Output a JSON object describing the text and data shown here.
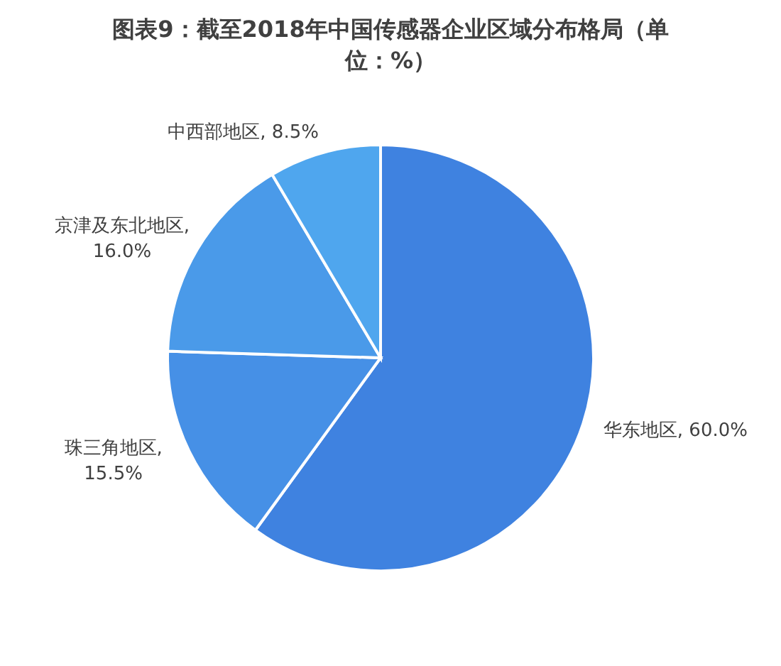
{
  "chart_data": {
    "type": "pie",
    "title": "图表9：截至2018年中国传感器企业区域分布格局（单位：%）",
    "categories": [
      "华东地区",
      "珠三角地区",
      "京津及东北地区",
      "中西部地区"
    ],
    "values": [
      60.0,
      15.5,
      16.0,
      8.5
    ],
    "colors": [
      "#3f82e0",
      "#4690e6",
      "#4a9ae9",
      "#4fa6ee"
    ],
    "value_labels": [
      ", 60.0%",
      ", 15.5%",
      ", 16.0%",
      ", 8.5%"
    ]
  }
}
